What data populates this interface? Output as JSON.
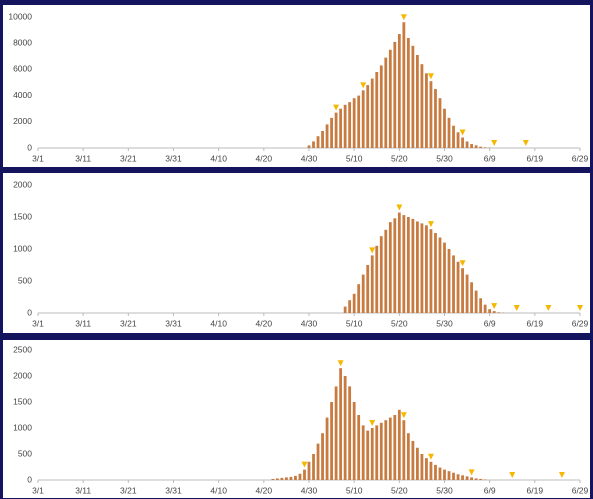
{
  "chart_data": [
    {
      "type": "bar",
      "color": "#c77b40",
      "marker_color": "#f5b800",
      "x": [
        60,
        61,
        62,
        63,
        64,
        65,
        66,
        67,
        68,
        69,
        70,
        71,
        72,
        73,
        74,
        75,
        76,
        77,
        78,
        79,
        80,
        81,
        82,
        83,
        84,
        85,
        86,
        87,
        88,
        89,
        90,
        91,
        92,
        93,
        94,
        95,
        96,
        97,
        98,
        99,
        100
      ],
      "values": [
        200,
        500,
        900,
        1300,
        1800,
        2300,
        2700,
        3000,
        3300,
        3500,
        3800,
        4000,
        4400,
        4800,
        5300,
        5800,
        6300,
        6900,
        7500,
        8100,
        8700,
        9600,
        8400,
        7800,
        7100,
        6400,
        5700,
        5100,
        4500,
        3800,
        3000,
        2300,
        1700,
        1200,
        800,
        500,
        300,
        200,
        100,
        50,
        30
      ],
      "marker_x": [
        66,
        72,
        81,
        87,
        94,
        101,
        108
      ],
      "xlim": [
        0,
        120
      ],
      "xticks": [
        {
          "value": 0,
          "label": "3/1"
        },
        {
          "value": 10,
          "label": "3/11"
        },
        {
          "value": 20,
          "label": "3/21"
        },
        {
          "value": 30,
          "label": "3/31"
        },
        {
          "value": 40,
          "label": "4/10"
        },
        {
          "value": 50,
          "label": "4/20"
        },
        {
          "value": 60,
          "label": "4/30"
        },
        {
          "value": 70,
          "label": "5/10"
        },
        {
          "value": 80,
          "label": "5/20"
        },
        {
          "value": 90,
          "label": "5/30"
        },
        {
          "value": 100,
          "label": "6/9"
        },
        {
          "value": 110,
          "label": "6/19"
        },
        {
          "value": 120,
          "label": "6/29"
        }
      ],
      "ylim": [
        0,
        10000
      ],
      "yticks": [
        0,
        2000,
        4000,
        6000,
        8000,
        10000
      ]
    },
    {
      "type": "bar",
      "color": "#c77b40",
      "marker_color": "#f5b800",
      "x": [
        68,
        69,
        70,
        71,
        72,
        73,
        74,
        75,
        76,
        77,
        78,
        79,
        80,
        81,
        82,
        83,
        84,
        85,
        86,
        87,
        88,
        89,
        90,
        91,
        92,
        93,
        94,
        95,
        96,
        97,
        98,
        99,
        100,
        101,
        102,
        103
      ],
      "values": [
        100,
        200,
        300,
        450,
        600,
        750,
        900,
        1050,
        1200,
        1300,
        1420,
        1480,
        1570,
        1530,
        1500,
        1470,
        1430,
        1400,
        1370,
        1310,
        1250,
        1180,
        1100,
        1000,
        900,
        800,
        700,
        600,
        480,
        350,
        230,
        130,
        60,
        30,
        10,
        5
      ],
      "marker_x": [
        74,
        80,
        87,
        94,
        101,
        106,
        113,
        120
      ],
      "xlim": [
        0,
        120
      ],
      "xticks": [
        {
          "value": 0,
          "label": "3/1"
        },
        {
          "value": 10,
          "label": "3/11"
        },
        {
          "value": 20,
          "label": "3/21"
        },
        {
          "value": 30,
          "label": "3/31"
        },
        {
          "value": 40,
          "label": "4/10"
        },
        {
          "value": 50,
          "label": "4/20"
        },
        {
          "value": 60,
          "label": "4/30"
        },
        {
          "value": 70,
          "label": "5/10"
        },
        {
          "value": 80,
          "label": "5/20"
        },
        {
          "value": 90,
          "label": "5/30"
        },
        {
          "value": 100,
          "label": "6/9"
        },
        {
          "value": 110,
          "label": "6/19"
        },
        {
          "value": 120,
          "label": "6/29"
        }
      ],
      "ylim": [
        0,
        2000
      ],
      "yticks": [
        0,
        500,
        1000,
        1500,
        2000
      ]
    },
    {
      "type": "bar",
      "color": "#c77b40",
      "marker_color": "#f5b800",
      "x": [
        52,
        53,
        54,
        55,
        56,
        57,
        58,
        59,
        60,
        61,
        62,
        63,
        64,
        65,
        66,
        67,
        68,
        69,
        70,
        71,
        72,
        73,
        74,
        75,
        76,
        77,
        78,
        79,
        80,
        81,
        82,
        83,
        84,
        85,
        86,
        87,
        88,
        89,
        90,
        91,
        92,
        93,
        94,
        95,
        96,
        97,
        98,
        99
      ],
      "values": [
        20,
        30,
        40,
        50,
        60,
        80,
        120,
        200,
        350,
        500,
        700,
        900,
        1200,
        1500,
        1800,
        2150,
        2000,
        1800,
        1500,
        1250,
        1050,
        950,
        1000,
        1050,
        1100,
        1150,
        1200,
        1250,
        1350,
        1150,
        900,
        750,
        620,
        500,
        420,
        350,
        290,
        240,
        200,
        170,
        140,
        110,
        90,
        70,
        50,
        30,
        20,
        10
      ],
      "marker_x": [
        59,
        67,
        74,
        81,
        87,
        96,
        105,
        116
      ],
      "xlim": [
        0,
        120
      ],
      "xticks": [
        {
          "value": 0,
          "label": "3/1"
        },
        {
          "value": 10,
          "label": "3/11"
        },
        {
          "value": 20,
          "label": "3/21"
        },
        {
          "value": 30,
          "label": "3/31"
        },
        {
          "value": 40,
          "label": "4/10"
        },
        {
          "value": 50,
          "label": "4/20"
        },
        {
          "value": 60,
          "label": "4/30"
        },
        {
          "value": 70,
          "label": "5/10"
        },
        {
          "value": 80,
          "label": "5/20"
        },
        {
          "value": 90,
          "label": "5/30"
        },
        {
          "value": 100,
          "label": "6/9"
        },
        {
          "value": 110,
          "label": "6/19"
        },
        {
          "value": 120,
          "label": "6/29"
        }
      ],
      "ylim": [
        0,
        2500
      ],
      "yticks": [
        0,
        500,
        1000,
        1500,
        2000,
        2500
      ]
    }
  ]
}
